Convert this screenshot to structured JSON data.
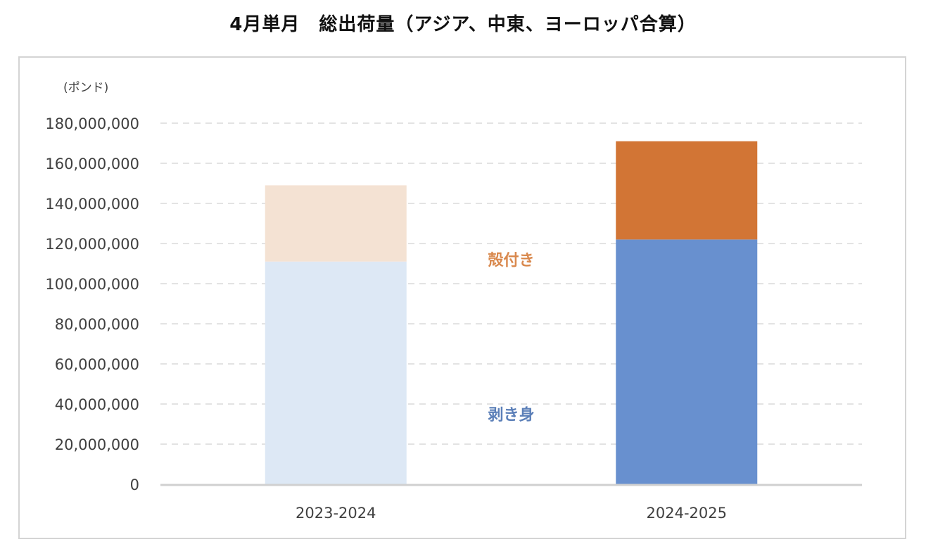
{
  "chart_data": {
    "type": "bar",
    "stacked": true,
    "title": "4月単月　総出荷量（アジア、中東、ヨーロッパ合算）",
    "unit_label": "(ポンド)",
    "categories": [
      "2023-2024",
      "2024-2025"
    ],
    "series": [
      {
        "name": "剥き身",
        "values": [
          111000000,
          122000000
        ],
        "colors": [
          "#dde8f5",
          "#6890cf"
        ],
        "label_color": "#5b7fb8"
      },
      {
        "name": "殻付き",
        "values": [
          38000000,
          49000000
        ],
        "colors": [
          "#f4e2d3",
          "#d27535"
        ],
        "label_color": "#d9894e"
      }
    ],
    "ylim": [
      0,
      180000000
    ],
    "y_ticks": [
      "0",
      "20,000,000",
      "40,000,000",
      "60,000,000",
      "80,000,000",
      "100,000,000",
      "120,000,000",
      "140,000,000",
      "160,000,000",
      "180,000,000"
    ],
    "grid": true,
    "legend": "inline-labels"
  }
}
